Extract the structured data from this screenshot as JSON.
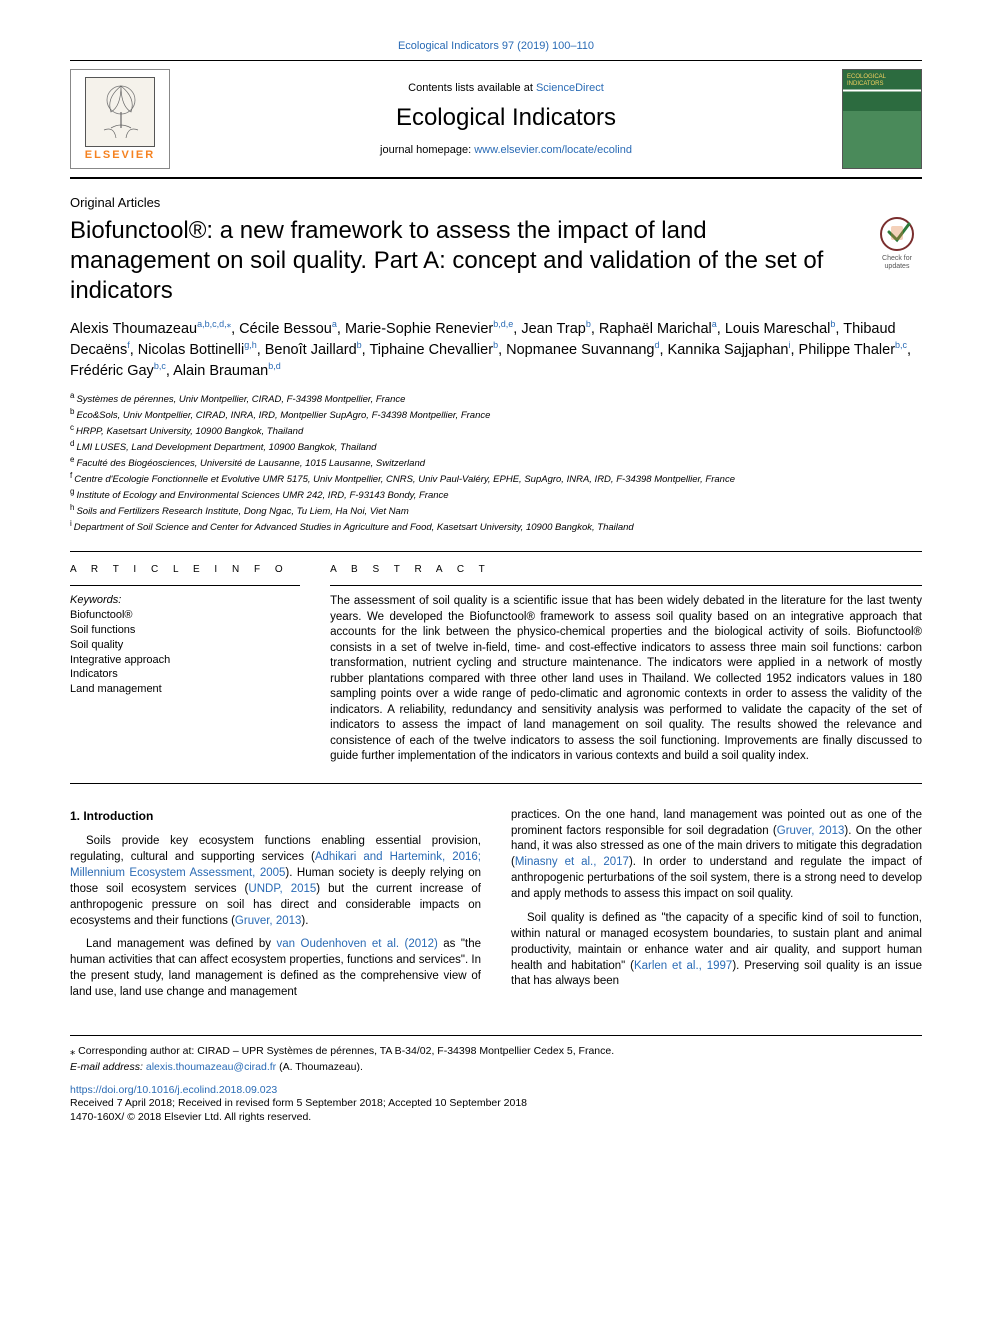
{
  "top_citation": "Ecological Indicators 97 (2019) 100–110",
  "header": {
    "contents_prefix": "Contents lists available at ",
    "contents_link": "ScienceDirect",
    "journal": "Ecological Indicators",
    "homepage_prefix": "journal homepage: ",
    "homepage_link": "www.elsevier.com/locate/ecolind",
    "publisher": "ELSEVIER"
  },
  "article_type": "Original Articles",
  "title": "Biofunctool®: a new framework to assess the impact of land management on soil quality. Part A: concept and validation of the set of indicators",
  "check_badge": "Check for updates",
  "authors_html": "Alexis Thoumazeau<sup class='sup'>a,b,c,d,</sup><a href='#' class='sup'>⁎</a>, Cécile Bessou<sup class='sup'>a</sup>, Marie-Sophie Renevier<sup class='sup'>b,d,e</sup>, Jean Trap<sup class='sup'>b</sup>, Raphaël Marichal<sup class='sup'>a</sup>, Louis Mareschal<sup class='sup'>b</sup>, Thibaud Decaëns<sup class='sup'>f</sup>, Nicolas Bottinelli<sup class='sup'>g,h</sup>, Benoît Jaillard<sup class='sup'>b</sup>, Tiphaine Chevallier<sup class='sup'>b</sup>, Nopmanee Suvannang<sup class='sup'>d</sup>, Kannika Sajjaphan<sup class='sup'>i</sup>, Philippe Thaler<sup class='sup'>b,c</sup>, Frédéric Gay<sup class='sup'>b,c</sup>, Alain Brauman<sup class='sup'>b,d</sup>",
  "affiliations": [
    {
      "key": "a",
      "text": "Systèmes de pérennes, Univ Montpellier, CIRAD, F-34398 Montpellier, France"
    },
    {
      "key": "b",
      "text": "Eco&Sols, Univ Montpellier, CIRAD, INRA, IRD, Montpellier SupAgro, F-34398 Montpellier, France"
    },
    {
      "key": "c",
      "text": "HRPP, Kasetsart University, 10900 Bangkok, Thailand"
    },
    {
      "key": "d",
      "text": "LMI LUSES, Land Development Department, 10900 Bangkok, Thailand"
    },
    {
      "key": "e",
      "text": "Faculté des Biogéosciences, Université de Lausanne, 1015 Lausanne, Switzerland"
    },
    {
      "key": "f",
      "text": "Centre d'Ecologie Fonctionnelle et Evolutive UMR 5175, Univ Montpellier, CNRS, Univ Paul-Valéry, EPHE, SupAgro, INRA, IRD, F-34398 Montpellier, France"
    },
    {
      "key": "g",
      "text": "Institute of Ecology and Environmental Sciences UMR 242, IRD, F-93143 Bondy, France"
    },
    {
      "key": "h",
      "text": "Soils and Fertilizers Research Institute, Dong Ngac, Tu Liem, Ha Noi, Viet Nam"
    },
    {
      "key": "i",
      "text": "Department of Soil Science and Center for Advanced Studies in Agriculture and Food, Kasetsart University, 10900 Bangkok, Thailand"
    }
  ],
  "article_info": {
    "heading": "A R T I C L E  I N F O",
    "keywords_label": "Keywords:",
    "keywords": [
      "Biofunctool®",
      "Soil functions",
      "Soil quality",
      "Integrative approach",
      "Indicators",
      "Land management"
    ]
  },
  "abstract": {
    "heading": "A B S T R A C T",
    "text": "The assessment of soil quality is a scientific issue that has been widely debated in the literature for the last twenty years. We developed the Biofunctool® framework to assess soil quality based on an integrative approach that accounts for the link between the physico-chemical properties and the biological activity of soils. Biofunctool® consists in a set of twelve in-field, time- and cost-effective indicators to assess three main soil functions: carbon transformation, nutrient cycling and structure maintenance. The indicators were applied in a network of mostly rubber plantations compared with three other land uses in Thailand. We collected 1952 indicators values in 180 sampling points over a wide range of pedo-climatic and agronomic contexts in order to assess the validity of the indicators. A reliability, redundancy and sensitivity analysis was performed to validate the capacity of the set of indicators to assess the impact of land management on soil quality. The results showed the relevance and consistence of each of the twelve indicators to assess the soil functioning. Improvements are finally discussed to guide further implementation of the indicators in various contexts and build a soil quality index."
  },
  "intro": {
    "heading": "1. Introduction",
    "p1_pre": "Soils provide key ecosystem functions enabling essential provision, regulating, cultural and supporting services (",
    "p1_cite1": "Adhikari and Hartemink, 2016; Millennium Ecosystem Assessment, 2005",
    "p1_mid1": "). Human society is deeply relying on those soil ecosystem services (",
    "p1_cite2": "UNDP, 2015",
    "p1_mid2": ") but the current increase of anthropogenic pressure on soil has direct and considerable impacts on ecosystems and their functions (",
    "p1_cite3": "Gruver, 2013",
    "p1_end": ").",
    "p2_pre": "Land management was defined by ",
    "p2_cite1": "van Oudenhoven et al. (2012)",
    "p2_mid1": " as \"the human activities that can affect ecosystem properties, functions and services\". In the present study, land management is defined as the comprehensive view of land use, land use change and management",
    "p3_pre": "practices. On the one hand, land management was pointed out as one of the prominent factors responsible for soil degradation (",
    "p3_cite1": "Gruver, 2013",
    "p3_mid1": "). On the other hand, it was also stressed as one of the main drivers to mitigate this degradation (",
    "p3_cite2": "Minasny et al., 2017",
    "p3_mid2": "). In order to understand and regulate the impact of anthropogenic perturbations of the soil system, there is a strong need to develop and apply methods to assess this impact on soil quality.",
    "p4_pre": "Soil quality is defined as \"the capacity of a specific kind of soil to function, within natural or managed ecosystem boundaries, to sustain plant and animal productivity, maintain or enhance water and air quality, and support human health and habitation\" (",
    "p4_cite1": "Karlen et al., 1997",
    "p4_end": "). Preserving soil quality is an issue that has always been"
  },
  "footer": {
    "corr_marker": "⁎",
    "corr_text": " Corresponding author at: CIRAD – UPR Systèmes de pérennes, TA B-34/02, F-34398 Montpellier Cedex 5, France.",
    "email_label": "E-mail address: ",
    "email": "alexis.thoumazeau@cirad.fr",
    "email_suffix": " (A. Thoumazeau).",
    "doi": "https://doi.org/10.1016/j.ecolind.2018.09.023",
    "history": "Received 7 April 2018; Received in revised form 5 September 2018; Accepted 10 September 2018",
    "copyright": "1470-160X/ © 2018 Elsevier Ltd. All rights reserved."
  }
}
